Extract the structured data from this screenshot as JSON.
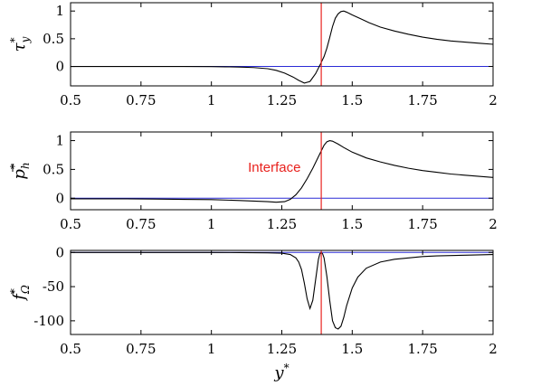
{
  "chart_data": [
    {
      "type": "line",
      "id": "panel1",
      "ylabel": "τ*y",
      "ylabel_main": "τ",
      "ylabel_sup": "*",
      "ylabel_sub": "y",
      "xlim": [
        0.5,
        2
      ],
      "ylim": [
        -0.35,
        1.15
      ],
      "xticks": [
        0.5,
        0.75,
        1,
        1.25,
        1.5,
        1.75,
        2
      ],
      "xtick_labels": [
        "0.5",
        "0.75",
        "1",
        "1.25",
        "1.5",
        "1.75",
        "2"
      ],
      "yticks": [
        0,
        0.5,
        1
      ],
      "ytick_labels": [
        "0",
        "0.5",
        "1"
      ],
      "interface_x": 1.39,
      "zero_line": 0,
      "series": [
        {
          "color": "#000000",
          "x": [
            0.5,
            0.6,
            0.7,
            0.8,
            0.9,
            1.0,
            1.05,
            1.1,
            1.15,
            1.2,
            1.23,
            1.26,
            1.29,
            1.31,
            1.33,
            1.35,
            1.37,
            1.385,
            1.4,
            1.41,
            1.42,
            1.43,
            1.44,
            1.45,
            1.46,
            1.47,
            1.48,
            1.5,
            1.53,
            1.56,
            1.6,
            1.65,
            1.7,
            1.75,
            1.8,
            1.85,
            1.9,
            1.95,
            2.0
          ],
          "y": [
            0,
            0,
            0,
            0,
            0,
            -0.003,
            -0.006,
            -0.01,
            -0.02,
            -0.04,
            -0.07,
            -0.12,
            -0.19,
            -0.25,
            -0.3,
            -0.27,
            -0.13,
            0.02,
            0.18,
            0.33,
            0.52,
            0.72,
            0.87,
            0.95,
            0.99,
            1.0,
            0.98,
            0.93,
            0.86,
            0.79,
            0.71,
            0.64,
            0.58,
            0.53,
            0.49,
            0.46,
            0.44,
            0.42,
            0.4
          ]
        }
      ]
    },
    {
      "type": "line",
      "id": "panel2",
      "ylabel": "p*h",
      "ylabel_main": "p",
      "ylabel_sup": "*",
      "ylabel_sub": "h",
      "xlim": [
        0.5,
        2
      ],
      "ylim": [
        -0.2,
        1.15
      ],
      "xticks": [
        0.5,
        0.75,
        1,
        1.25,
        1.5,
        1.75,
        2
      ],
      "xtick_labels": [
        "0.5",
        "0.75",
        "1",
        "1.25",
        "1.5",
        "1.75",
        "2"
      ],
      "yticks": [
        0,
        0.5,
        1
      ],
      "ytick_labels": [
        "0",
        "0.5",
        "1"
      ],
      "interface_x": 1.39,
      "zero_line": 0,
      "annotation": {
        "text": "Interface",
        "x": 1.13,
        "y": 0.46
      },
      "series": [
        {
          "color": "#000000",
          "x": [
            0.5,
            0.6,
            0.7,
            0.8,
            0.9,
            1.0,
            1.1,
            1.15,
            1.2,
            1.23,
            1.26,
            1.28,
            1.3,
            1.32,
            1.34,
            1.36,
            1.38,
            1.39,
            1.4,
            1.41,
            1.42,
            1.43,
            1.45,
            1.47,
            1.5,
            1.55,
            1.6,
            1.65,
            1.7,
            1.75,
            1.8,
            1.85,
            1.9,
            1.95,
            2.0
          ],
          "y": [
            -0.01,
            -0.01,
            -0.01,
            -0.015,
            -0.02,
            -0.025,
            -0.04,
            -0.05,
            -0.06,
            -0.07,
            -0.06,
            -0.02,
            0.06,
            0.18,
            0.34,
            0.52,
            0.72,
            0.82,
            0.92,
            0.98,
            1.0,
            0.99,
            0.94,
            0.88,
            0.8,
            0.7,
            0.63,
            0.57,
            0.52,
            0.48,
            0.45,
            0.42,
            0.4,
            0.38,
            0.36
          ]
        }
      ]
    },
    {
      "type": "line",
      "id": "panel3",
      "ylabel": "f*Ω",
      "ylabel_main": "f",
      "ylabel_sup": "*",
      "ylabel_sub": "Ω",
      "xlabel": "y*",
      "xlabel_main": "y",
      "xlabel_sup": "*",
      "xlim": [
        0.5,
        2
      ],
      "ylim": [
        -120,
        3
      ],
      "xticks": [
        0.5,
        0.75,
        1,
        1.25,
        1.5,
        1.75,
        2
      ],
      "xtick_labels": [
        "0.5",
        "0.75",
        "1",
        "1.25",
        "1.5",
        "1.75",
        "2"
      ],
      "yticks": [
        0,
        -50,
        -100
      ],
      "ytick_labels": [
        "0",
        "-50",
        "-100"
      ],
      "interface_x": 1.39,
      "zero_line": 0,
      "series": [
        {
          "color": "#000000",
          "x": [
            0.5,
            0.8,
            1.0,
            1.1,
            1.2,
            1.25,
            1.28,
            1.3,
            1.31,
            1.32,
            1.33,
            1.34,
            1.35,
            1.36,
            1.37,
            1.38,
            1.385,
            1.39,
            1.395,
            1.4,
            1.41,
            1.42,
            1.43,
            1.44,
            1.45,
            1.46,
            1.47,
            1.48,
            1.5,
            1.52,
            1.55,
            1.6,
            1.65,
            1.7,
            1.75,
            1.8,
            1.9,
            2.0
          ],
          "y": [
            0,
            0,
            0,
            -0.2,
            -0.5,
            -1,
            -3,
            -8,
            -14,
            -25,
            -45,
            -68,
            -82,
            -70,
            -40,
            -10,
            -2,
            0,
            -2,
            -8,
            -35,
            -70,
            -100,
            -110,
            -112,
            -108,
            -95,
            -78,
            -52,
            -36,
            -23,
            -14,
            -10,
            -8,
            -6,
            -5,
            -4,
            -3
          ]
        }
      ]
    }
  ]
}
